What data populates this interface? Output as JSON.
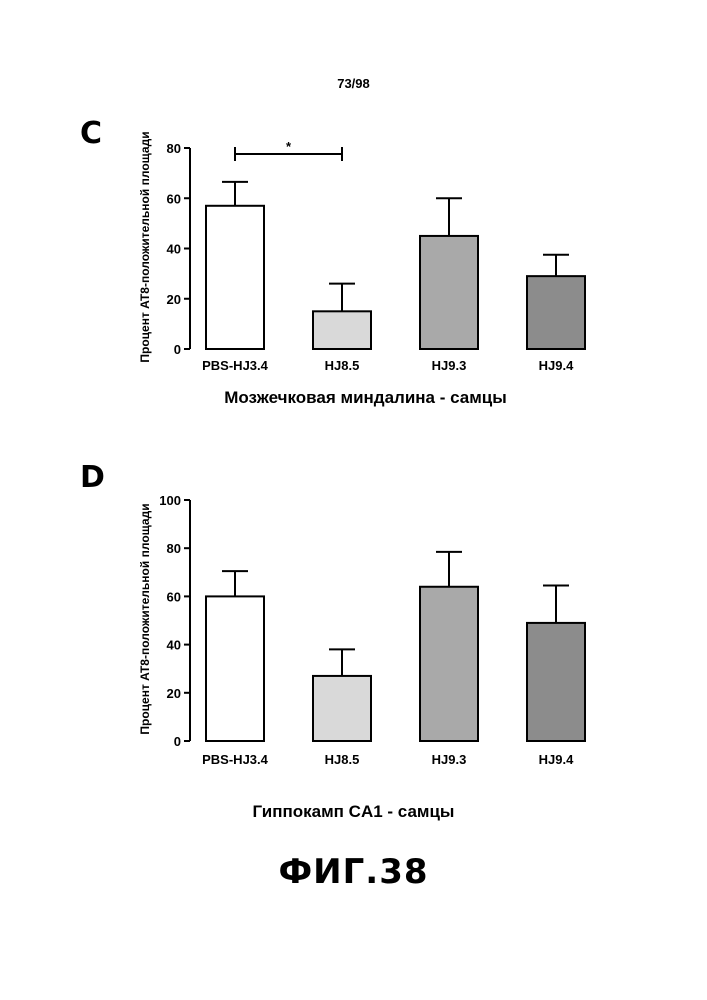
{
  "page_number": "73/98",
  "figure_title": "ФИГ.38",
  "chart_data": [
    {
      "panel": "C",
      "type": "bar",
      "title": "",
      "xlabel": "Мозжечковая миндалина - самцы",
      "ylabel": "Процент AT8-положительной площади",
      "categories": [
        "PBS-HJ3.4",
        "HJ8.5",
        "HJ9.3",
        "HJ9.4"
      ],
      "values": [
        57,
        15,
        45,
        29
      ],
      "errors": [
        9.5,
        11,
        15,
        8.5
      ],
      "fills": [
        "#ffffff",
        "#d9d9d9",
        "#a9a9a9",
        "#8c8c8c"
      ],
      "ylim": [
        0,
        80
      ],
      "yticks": [
        0,
        20,
        40,
        60,
        80
      ],
      "grid": false,
      "annotation": {
        "text": "*",
        "from": "PBS-HJ3.4",
        "to": "HJ8.5"
      }
    },
    {
      "panel": "D",
      "type": "bar",
      "title": "",
      "xlabel": "Гиппокамп CA1 - самцы",
      "ylabel": "Процент AT8-положительной площади",
      "categories": [
        "PBS-HJ3.4",
        "HJ8.5",
        "HJ9.3",
        "HJ9.4"
      ],
      "values": [
        60,
        27,
        64,
        49
      ],
      "errors": [
        10.5,
        11,
        14.5,
        15.5
      ],
      "fills": [
        "#ffffff",
        "#d9d9d9",
        "#a9a9a9",
        "#8c8c8c"
      ],
      "ylim": [
        0,
        100
      ],
      "yticks": [
        0,
        20,
        40,
        60,
        80,
        100
      ],
      "grid": false
    }
  ]
}
